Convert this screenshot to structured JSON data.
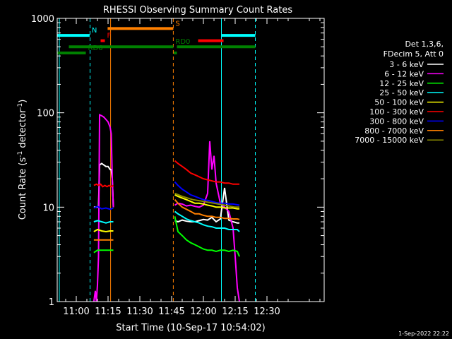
{
  "chart_data": {
    "type": "line",
    "title": "RHESSI Observing Summary Count Rates",
    "xlabel": "Start Time (10-Sep-17 10:54:02)",
    "ylabel_main": "Count Rate (s",
    "ylabel_sup1": "-1",
    "ylabel_mid": " detector",
    "ylabel_sup2": "-1",
    "ylabel_end": ")",
    "yscale": "log",
    "ylim": [
      1,
      1000
    ],
    "xlim_minutes": [
      -9.0,
      117.0
    ],
    "x_ticks": [
      {
        "min": 0,
        "label": "11:00"
      },
      {
        "min": 15,
        "label": "11:15"
      },
      {
        "min": 30,
        "label": "11:30"
      },
      {
        "min": 45,
        "label": "11:45"
      },
      {
        "min": 60,
        "label": "12:00"
      },
      {
        "min": 75,
        "label": "12:15"
      },
      {
        "min": 90,
        "label": "12:30"
      }
    ],
    "y_ticks": [
      {
        "value": 1,
        "label": "1"
      },
      {
        "value": 10,
        "label": "10"
      },
      {
        "value": 100,
        "label": "100"
      },
      {
        "value": 1000,
        "label": "1000"
      }
    ],
    "legend_header": [
      "Det 1,3,6,",
      "FDecim 5, Att 0"
    ],
    "legend_placement": "right",
    "series": [
      {
        "name": "3 - 6 keV",
        "color": "#ffffff",
        "segments": [
          {
            "x": [
              8.3,
              10.5,
              11.0,
              12.0,
              13.0,
              14.0,
              15.0,
              16.0,
              16.5,
              17.0,
              17.5
            ],
            "y": [
              10.0,
              10.0,
              28,
              29,
              28,
              27,
              27,
              25,
              25,
              20,
              10
            ]
          },
          {
            "x": [
              46.5,
              48,
              50,
              52,
              54,
              56,
              58,
              60,
              62,
              64,
              66,
              68,
              70,
              72,
              74,
              76,
              77
            ],
            "y": [
              7.2,
              7.0,
              7.3,
              7.1,
              7.0,
              7.0,
              7.2,
              7.4,
              7.3,
              7.8,
              7.0,
              7.5,
              16,
              7.3,
              7.0,
              6.8,
              6.8
            ]
          }
        ]
      },
      {
        "name": "6 - 12 keV",
        "color": "#ff00ff",
        "segments": [
          {
            "x": [
              8.3,
              9.0,
              9.5,
              10.0,
              10.5,
              11.0,
              12.0,
              13.0,
              14.0,
              15.0,
              16.0,
              16.5,
              17.0,
              17.5
            ],
            "y": [
              1.0,
              1.3,
              1.0,
              1.5,
              3.0,
              95,
              93,
              90,
              85,
              80,
              70,
              60,
              20,
              10
            ]
          },
          {
            "x": [
              46.5,
              48,
              50,
              52,
              54,
              56,
              58,
              60,
              62,
              63,
              64,
              65,
              66,
              68,
              70,
              72,
              74,
              75,
              76,
              77
            ],
            "y": [
              10.5,
              11,
              10.8,
              10.3,
              10.5,
              10.2,
              10,
              10.5,
              14,
              50,
              25,
              35,
              18,
              11,
              10,
              9,
              6,
              3,
              1.4,
              1.0
            ]
          }
        ]
      },
      {
        "name": "12 - 25 keV",
        "color": "#00ff00",
        "segments": [
          {
            "x": [
              8.3,
              10.0,
              12.0,
              14.0,
              16.0,
              17.5
            ],
            "y": [
              3.3,
              3.5,
              3.5,
              3.5,
              3.5,
              3.5
            ]
          },
          {
            "x": [
              46.5,
              48,
              50,
              52,
              54,
              56,
              58,
              60,
              62,
              64,
              66,
              68,
              70,
              72,
              74,
              76,
              77
            ],
            "y": [
              8.0,
              5.5,
              5.0,
              4.5,
              4.2,
              4.0,
              3.8,
              3.6,
              3.5,
              3.5,
              3.4,
              3.5,
              3.5,
              3.4,
              3.5,
              3.4,
              3.0
            ]
          }
        ]
      },
      {
        "name": "25 - 50 keV",
        "color": "#00ffff",
        "segments": [
          {
            "x": [
              8.3,
              10.0,
              12.0,
              14.0,
              16.0,
              17.5
            ],
            "y": [
              7.0,
              7.2,
              7.0,
              6.8,
              7.0,
              7.0
            ]
          },
          {
            "x": [
              46.5,
              48,
              50,
              52,
              54,
              56,
              58,
              60,
              62,
              64,
              66,
              68,
              70,
              72,
              74,
              76,
              77
            ],
            "y": [
              9.0,
              8.5,
              8.0,
              7.5,
              7.2,
              7.0,
              6.8,
              6.5,
              6.3,
              6.2,
              6.0,
              6.0,
              6.0,
              5.8,
              5.8,
              5.8,
              5.5
            ]
          }
        ]
      },
      {
        "name": "50 - 100 keV",
        "color": "#ffff00",
        "segments": [
          {
            "x": [
              8.3,
              10.0,
              12.0,
              14.0,
              16.0,
              17.5
            ],
            "y": [
              5.5,
              5.8,
              5.6,
              5.5,
              5.6,
              5.6
            ]
          },
          {
            "x": [
              46.5,
              48,
              50,
              52,
              54,
              56,
              58,
              60,
              62,
              64,
              66,
              68,
              70,
              72,
              74,
              76,
              77
            ],
            "y": [
              13.5,
              13.0,
              12.5,
              12.0,
              11.5,
              11.0,
              11.0,
              10.8,
              10.5,
              10.3,
              10.0,
              10.0,
              9.8,
              9.8,
              9.8,
              9.6,
              9.6
            ]
          }
        ]
      },
      {
        "name": "100 - 300 keV",
        "color": "#ff0000",
        "segments": [
          {
            "x": [
              8.3,
              9.5,
              10.5,
              11.5,
              12.5,
              13.5,
              14.5,
              15.5,
              16.5,
              17.5
            ],
            "y": [
              17,
              17.5,
              17,
              17.5,
              16.5,
              17,
              16.5,
              17,
              16.5,
              17
            ]
          },
          {
            "x": [
              46.5,
              48,
              50,
              52,
              54,
              56,
              58,
              60,
              62,
              64,
              66,
              68,
              70,
              72,
              74,
              76,
              77
            ],
            "y": [
              31,
              29,
              27,
              25,
              23,
              22,
              21,
              20,
              19.5,
              19,
              18.5,
              18.5,
              18,
              18,
              17.5,
              17.5,
              17.5
            ]
          }
        ]
      },
      {
        "name": "300 - 800 keV",
        "color": "#0000ff",
        "segments": [
          {
            "x": [
              8.3,
              10.0,
              12.0,
              14.0,
              16.0,
              17.5
            ],
            "y": [
              9.8,
              10.2,
              9.6,
              9.8,
              9.5,
              9.8
            ]
          },
          {
            "x": [
              46.5,
              48,
              50,
              52,
              54,
              56,
              58,
              60,
              62,
              64,
              66,
              68,
              70,
              72,
              74,
              76,
              77
            ],
            "y": [
              18.5,
              17,
              15.5,
              14.5,
              13.5,
              13,
              12.5,
              12,
              11.8,
              11.5,
              11.2,
              11,
              11,
              10.8,
              10.8,
              10.6,
              10.5
            ]
          }
        ]
      },
      {
        "name": "800 - 7000 keV",
        "color": "#ff8000",
        "segments": [
          {
            "x": [
              8.3,
              10.0,
              12.0,
              14.0,
              16.0,
              17.5
            ],
            "y": [
              4.5,
              4.5,
              4.5,
              4.5,
              4.5,
              4.5
            ]
          },
          {
            "x": [
              46.5,
              48,
              50,
              52,
              54,
              56,
              58,
              60,
              62,
              64,
              66,
              68,
              70,
              72,
              74,
              76,
              77
            ],
            "y": [
              12.0,
              11.0,
              10.0,
              9.5,
              9.0,
              8.5,
              8.5,
              8.2,
              8.0,
              8.0,
              7.8,
              7.8,
              7.6,
              7.6,
              7.5,
              7.5,
              7.4
            ]
          }
        ]
      },
      {
        "name": "7000 - 15000 keV",
        "color": "#8b8b00",
        "segments": [
          {
            "x": [
              46.5,
              50,
              55,
              60,
              65,
              70,
              75,
              77
            ],
            "y": [
              14.0,
              13.0,
              12.0,
              11.5,
              11.0,
              10.5,
              10.0,
              10.0
            ]
          }
        ]
      }
    ],
    "flags": [
      {
        "label": "N",
        "color": "#00ffff",
        "segments": [
          [
            -9.0,
            6.3
          ],
          [
            68.5,
            84.5
          ]
        ],
        "level": 660
      },
      {
        "label": "S",
        "color": "#ff8000",
        "segments": [
          [
            14.8,
            45.8
          ]
        ],
        "level": 780
      },
      {
        "label": "F",
        "color": "#ff0000",
        "segments": [
          [
            11.5,
            13.5
          ],
          [
            57.5,
            69.5
          ]
        ],
        "level": 580
      },
      {
        "label": "RD0",
        "color": "#008000",
        "segments": [
          [
            -3.5,
            45.8
          ],
          [
            47.5,
            84.5
          ]
        ],
        "level": 500
      },
      {
        "label": "RD6",
        "color": "#008000",
        "segments": [
          [
            -9.0,
            4.5
          ],
          [
            46.0,
            47.5
          ]
        ],
        "level": 430
      }
    ],
    "vlines": [
      {
        "min": 6.5,
        "color": "#00ffff",
        "style": "dashed"
      },
      {
        "min": 16.2,
        "color": "#ff8000",
        "style": "solid"
      },
      {
        "min": 45.8,
        "color": "#ff8000",
        "style": "dashed"
      },
      {
        "min": 68.5,
        "color": "#00ffff",
        "style": "solid"
      },
      {
        "min": 84.5,
        "color": "#00ffff",
        "style": "dashed"
      },
      {
        "min": -8.0,
        "color": "#00ffff",
        "style": "solid"
      }
    ]
  },
  "footer_timestamp": "1-Sep-2022 22:22"
}
